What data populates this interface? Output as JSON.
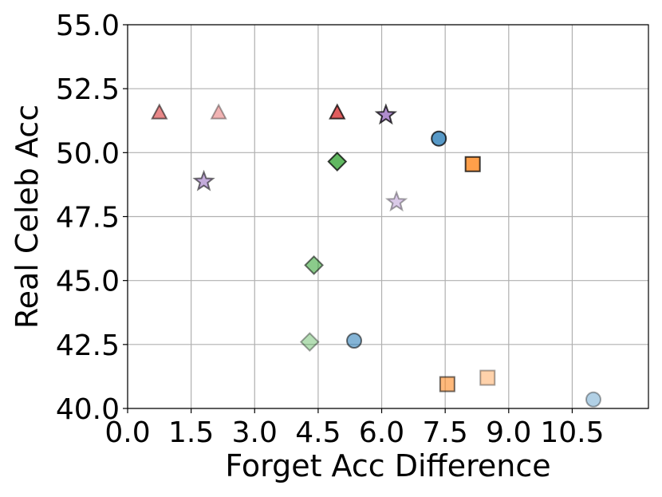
{
  "chart_data": {
    "type": "scatter",
    "xlabel": "Forget Acc Difference",
    "ylabel": "Real Celeb Acc",
    "xlim": [
      0,
      12.3
    ],
    "ylim": [
      40.0,
      55.0
    ],
    "grid": true,
    "xticks": [
      "0.0",
      "1.5",
      "3.0",
      "4.5",
      "6.0",
      "7.5",
      "9.0",
      "10.5"
    ],
    "yticks": [
      "40.0",
      "42.5",
      "45.0",
      "47.5",
      "50.0",
      "52.5",
      "55.0"
    ],
    "series": [
      {
        "marker": "triangle",
        "color": "#d62728",
        "points": [
          {
            "x": 0.75,
            "y": 51.55,
            "alpha": 0.55
          },
          {
            "x": 2.15,
            "y": 51.55,
            "alpha": 0.35
          },
          {
            "x": 4.95,
            "y": 51.55,
            "alpha": 0.75
          }
        ]
      },
      {
        "marker": "star",
        "color": "#9467bd",
        "points": [
          {
            "x": 1.8,
            "y": 48.9,
            "alpha": 0.55
          },
          {
            "x": 6.1,
            "y": 51.5,
            "alpha": 0.75
          },
          {
            "x": 6.35,
            "y": 48.1,
            "alpha": 0.35
          }
        ]
      },
      {
        "marker": "diamond",
        "color": "#2ca02c",
        "points": [
          {
            "x": 4.95,
            "y": 49.65,
            "alpha": 0.75
          },
          {
            "x": 4.4,
            "y": 45.6,
            "alpha": 0.55
          },
          {
            "x": 4.3,
            "y": 42.6,
            "alpha": 0.35
          }
        ]
      },
      {
        "marker": "circle",
        "color": "#1f77b4",
        "points": [
          {
            "x": 7.35,
            "y": 50.55,
            "alpha": 0.75
          },
          {
            "x": 5.35,
            "y": 42.65,
            "alpha": 0.55
          },
          {
            "x": 11.0,
            "y": 40.35,
            "alpha": 0.35
          }
        ]
      },
      {
        "marker": "square",
        "color": "#ff7f0e",
        "points": [
          {
            "x": 8.15,
            "y": 49.55,
            "alpha": 0.75
          },
          {
            "x": 7.55,
            "y": 40.95,
            "alpha": 0.55
          },
          {
            "x": 8.5,
            "y": 41.2,
            "alpha": 0.35
          }
        ]
      }
    ]
  }
}
